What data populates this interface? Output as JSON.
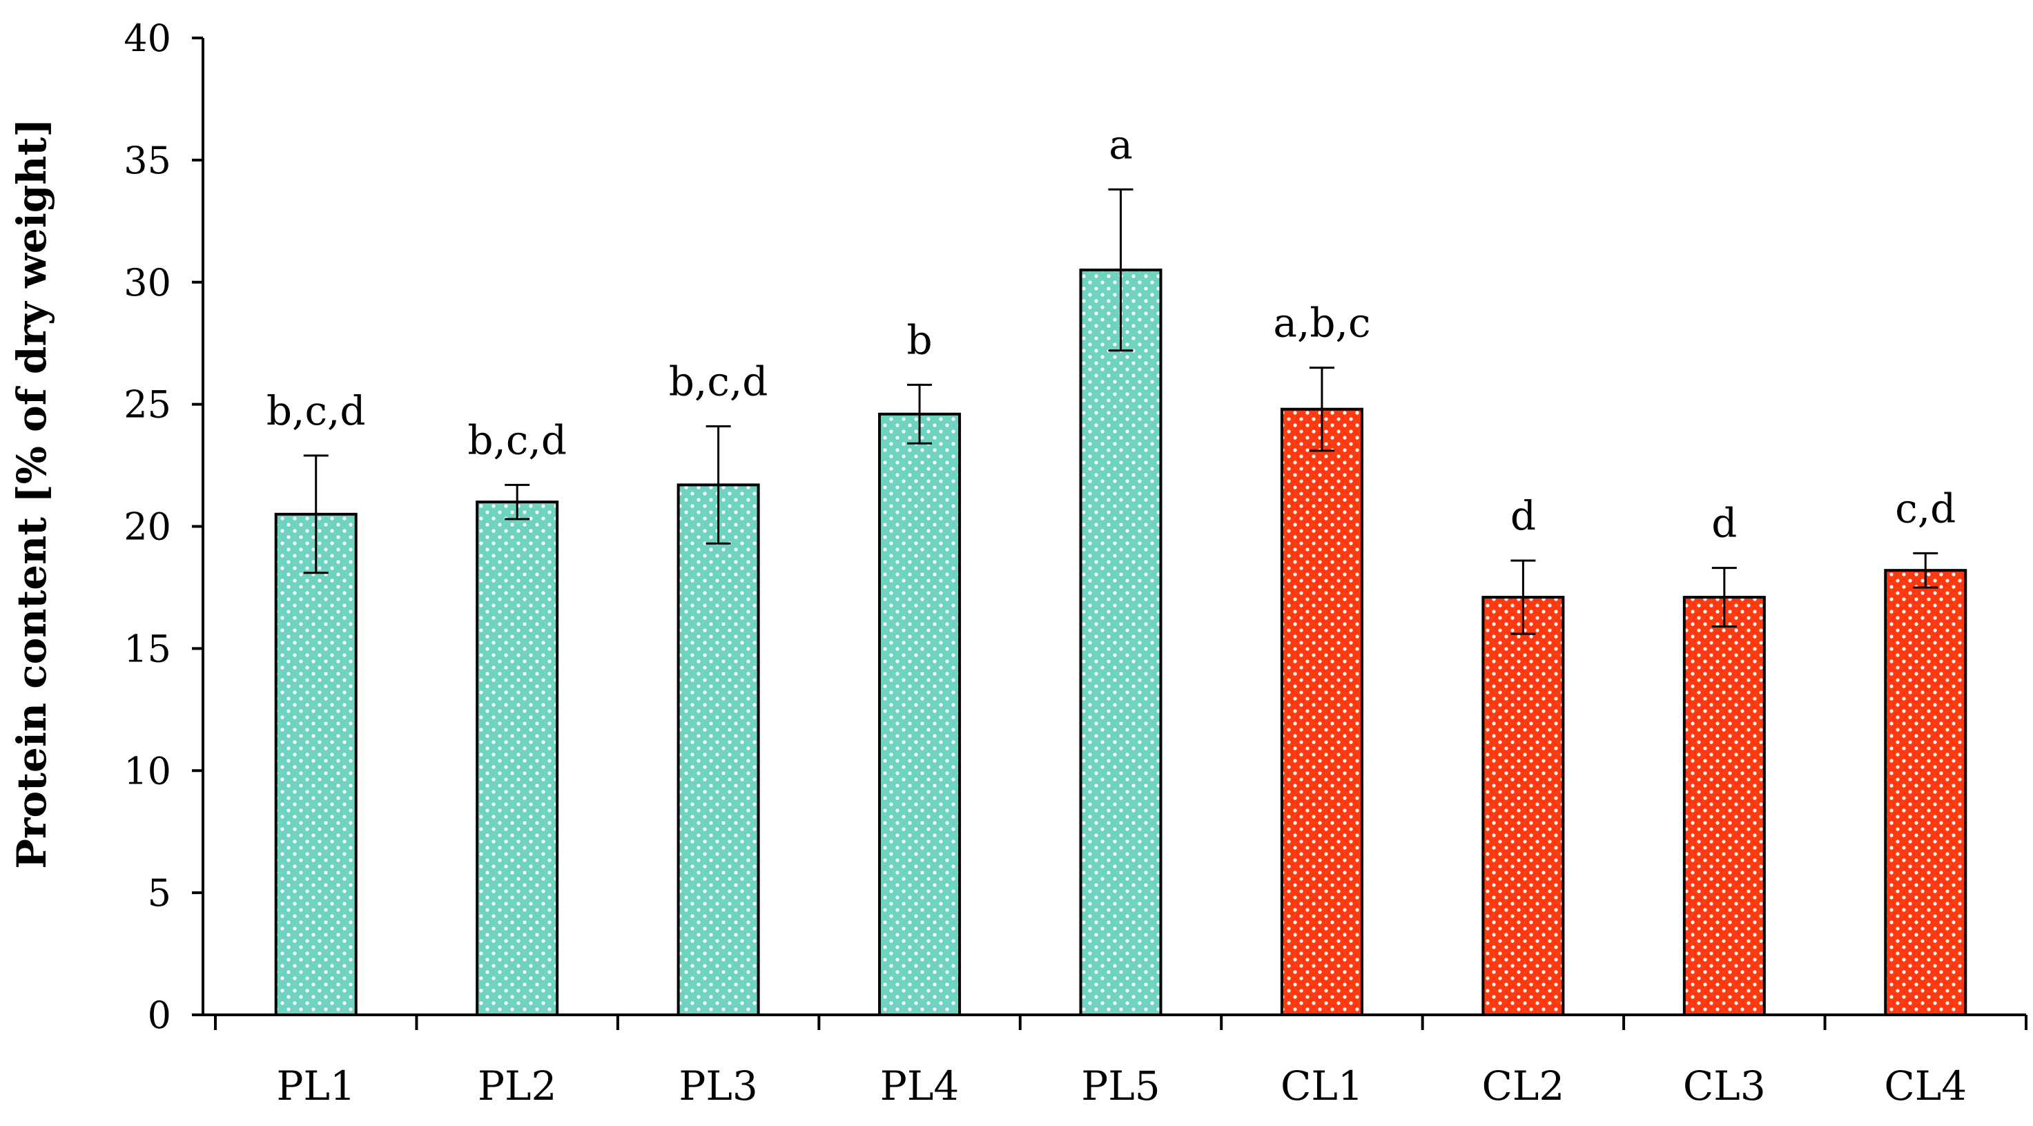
{
  "chart_data": {
    "type": "bar",
    "title": "",
    "xlabel": "",
    "ylabel": "Protein content [% of dry weight]",
    "ylim": [
      0,
      40
    ],
    "yticks": [
      0,
      5,
      10,
      15,
      20,
      25,
      30,
      35,
      40
    ],
    "grid": false,
    "legend": "none",
    "categories": [
      "PL1",
      "PL2",
      "PL3",
      "PL4",
      "PL5",
      "CL1",
      "CL2",
      "CL3",
      "CL4"
    ],
    "values": [
      20.5,
      21.0,
      21.7,
      24.6,
      30.5,
      24.8,
      17.1,
      17.1,
      18.2
    ],
    "errors": [
      2.4,
      0.7,
      2.4,
      1.2,
      3.3,
      1.7,
      1.5,
      1.2,
      0.7
    ],
    "significance": [
      "b,c,d",
      "b,c,d",
      "b,c,d",
      "b",
      "a",
      "a,b,c",
      "d",
      "d",
      "c,d"
    ],
    "groups": [
      "PL",
      "PL",
      "PL",
      "PL",
      "PL",
      "CL",
      "CL",
      "CL",
      "CL"
    ],
    "colors": {
      "PL": "#6fd3c2",
      "CL": "#ff3a10"
    }
  }
}
